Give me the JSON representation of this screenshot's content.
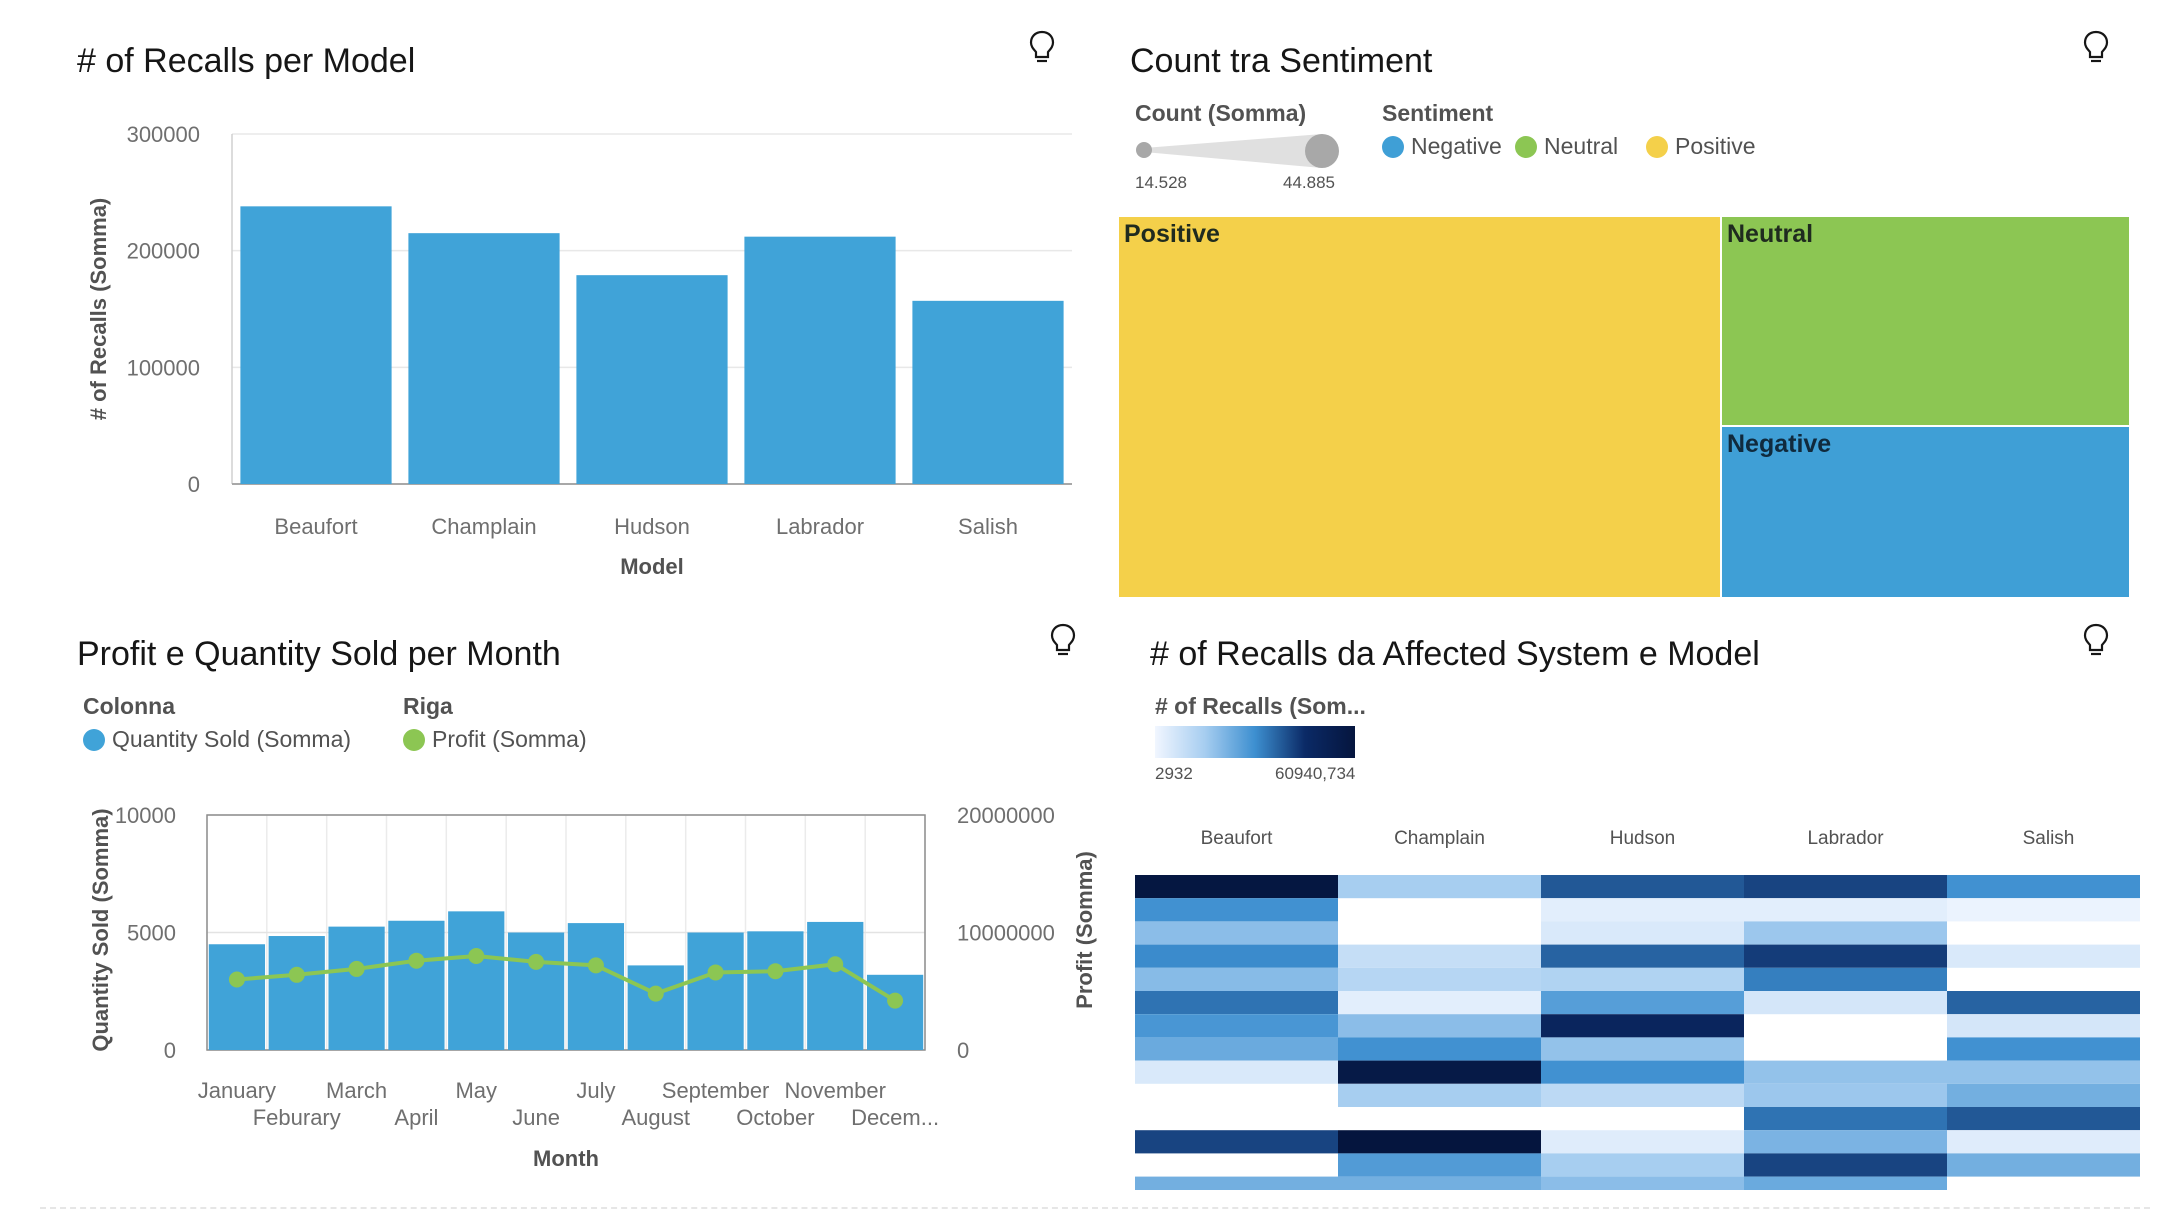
{
  "panels": {
    "recalls_per_model": {
      "title": "# of Recalls per Model",
      "ylabel": "# of Recalls (Somma)",
      "xlabel": "Model",
      "bulb_icon": "lightbulb-icon"
    },
    "sentiment": {
      "title": "Count tra Sentiment",
      "size_legend_label": "Count (Somma)",
      "size_min": "14.528",
      "size_max": "44.885",
      "color_legend_label": "Sentiment",
      "legend": [
        {
          "label": "Negative",
          "color": "#3f9fd6"
        },
        {
          "label": "Neutral",
          "color": "#8cc653"
        },
        {
          "label": "Positive",
          "color": "#f4d04a"
        }
      ],
      "bulb_icon": "lightbulb-icon"
    },
    "profit_quantity": {
      "title": "Profit e Quantity Sold per Month",
      "column_legend_title": "Colonna",
      "column_legend_item": "Quantity Sold (Somma)",
      "row_legend_title": "Riga",
      "row_legend_item": "Profit (Somma)",
      "y_left_label": "Quantity Sold (Somma)",
      "y_right_label": "Profit (Somma)",
      "xlabel": "Month",
      "bulb_icon": "lightbulb-icon"
    },
    "recalls_heatmap": {
      "title": "# of Recalls da Affected System e Model",
      "color_legend_label": "# of Recalls (Som...",
      "color_min": "2932",
      "color_max": "60940,734",
      "bulb_icon": "lightbulb-icon"
    }
  },
  "colors": {
    "bar_blue": "#40a3d8",
    "line_green": "#8cc653",
    "positive": "#f4d04a",
    "neutral": "#8cc653",
    "negative": "#3f9fd6"
  },
  "chart_data": [
    {
      "type": "bar",
      "title": "# of Recalls per Model",
      "categories": [
        "Beaufort",
        "Champlain",
        "Hudson",
        "Labrador",
        "Salish"
      ],
      "values": [
        238000,
        215000,
        179000,
        212000,
        157000
      ],
      "xlabel": "Model",
      "ylabel": "# of Recalls (Somma)",
      "yticks": [
        "0",
        "100000",
        "200000",
        "300000"
      ],
      "ylim": [
        0,
        300000
      ],
      "grid": true
    },
    {
      "type": "treemap",
      "title": "Count tra Sentiment",
      "categories": [
        "Positive",
        "Neutral",
        "Negative"
      ],
      "values": [
        44.885,
        20.3,
        14.528
      ]
    },
    {
      "type": "bar",
      "title": "Profit e Quantity Sold per Month",
      "categories": [
        "January",
        "Feburary",
        "March",
        "April",
        "May",
        "June",
        "July",
        "August",
        "September",
        "October",
        "November",
        "Decem..."
      ],
      "series": [
        {
          "name": "Quantity Sold (Somma)",
          "type": "bar",
          "axis": "left",
          "values": [
            4500,
            4850,
            5250,
            5500,
            5900,
            5000,
            5400,
            3600,
            5000,
            5050,
            5450,
            3200
          ]
        },
        {
          "name": "Profit (Somma)",
          "type": "line",
          "axis": "right",
          "values": [
            6000000,
            6400000,
            6900000,
            7600000,
            8000000,
            7500000,
            7200000,
            4800000,
            6600000,
            6700000,
            7300000,
            4200000
          ]
        }
      ],
      "xlabel": "Month",
      "ylabel": "Quantity Sold (Somma)",
      "y2label": "Profit (Somma)",
      "yticks": [
        "0",
        "5000",
        "10000"
      ],
      "y2ticks": [
        "0",
        "10000000",
        "20000000"
      ],
      "ylim": [
        0,
        10000
      ],
      "y2lim": [
        0,
        20000000
      ],
      "grid": true
    },
    {
      "type": "heatmap",
      "title": "# of Recalls da Affected System e Model",
      "columns": [
        "Beaufort",
        "Champlain",
        "Hudson",
        "Labrador",
        "Salish"
      ],
      "range": [
        2932,
        60940.734
      ],
      "matrix": [
        [
          1.0,
          0.25,
          0.65,
          0.7,
          0.5
        ],
        [
          0.5,
          0.0,
          0.05,
          0.05,
          0.02
        ],
        [
          0.32,
          0.0,
          0.08,
          0.28,
          0.0
        ],
        [
          0.52,
          0.15,
          0.62,
          0.72,
          0.08
        ],
        [
          0.33,
          0.2,
          0.22,
          0.55,
          0.0
        ],
        [
          0.58,
          0.05,
          0.45,
          0.1,
          0.62
        ],
        [
          0.48,
          0.32,
          0.82,
          0.0,
          0.1
        ],
        [
          0.4,
          0.5,
          0.3,
          0.0,
          0.5
        ],
        [
          0.08,
          0.96,
          0.5,
          0.3,
          0.3
        ],
        [
          0.0,
          0.25,
          0.18,
          0.28,
          0.38
        ],
        [
          0.0,
          0.0,
          0.0,
          0.58,
          0.65
        ],
        [
          0.7,
          1.02,
          0.06,
          0.36,
          0.06
        ],
        [
          0.0,
          0.46,
          0.25,
          0.7,
          0.38
        ],
        [
          0.38,
          0.38,
          0.32,
          0.4,
          0.0
        ]
      ]
    }
  ]
}
